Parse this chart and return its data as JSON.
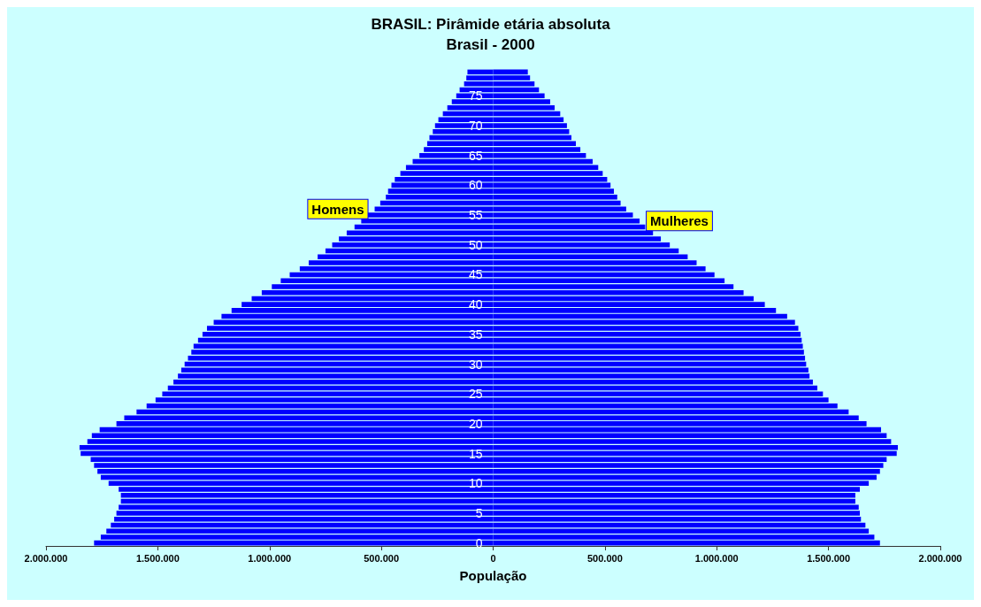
{
  "chart_data": {
    "type": "bar",
    "orientation": "horizontal",
    "title": "BRASIL: Pirâmide etária absoluta",
    "subtitle": "Brasil - 2000",
    "xlabel": "População",
    "categories": [
      null,
      null,
      null,
      null,
      "75",
      null,
      null,
      null,
      null,
      "70",
      null,
      null,
      null,
      null,
      "65",
      null,
      null,
      null,
      null,
      "60",
      null,
      null,
      null,
      null,
      "55",
      null,
      null,
      null,
      null,
      "50",
      null,
      null,
      null,
      null,
      "45",
      null,
      null,
      null,
      null,
      "40",
      null,
      null,
      null,
      null,
      "35",
      null,
      null,
      null,
      null,
      "30",
      null,
      null,
      null,
      null,
      "25",
      null,
      null,
      null,
      null,
      "20",
      null,
      null,
      null,
      null,
      "15",
      null,
      null,
      null,
      null,
      "10",
      null,
      null,
      null,
      null,
      "5",
      null,
      null,
      null,
      null,
      "0"
    ],
    "series": [
      {
        "name": "Homens",
        "color": "#0000ff",
        "values": [
          -115000,
          -120000,
          -130000,
          -150000,
          -165000,
          -185000,
          -205000,
          -225000,
          -245000,
          -260000,
          -270000,
          -285000,
          -295000,
          -310000,
          -330000,
          -360000,
          -390000,
          -415000,
          -440000,
          -455000,
          -470000,
          -480000,
          -505000,
          -530000,
          -560000,
          -590000,
          -620000,
          -655000,
          -690000,
          -720000,
          -750000,
          -785000,
          -825000,
          -865000,
          -910000,
          -950000,
          -990000,
          -1035000,
          -1080000,
          -1125000,
          -1170000,
          -1215000,
          -1250000,
          -1280000,
          -1300000,
          -1320000,
          -1340000,
          -1350000,
          -1365000,
          -1380000,
          -1395000,
          -1410000,
          -1430000,
          -1455000,
          -1480000,
          -1510000,
          -1550000,
          -1595000,
          -1650000,
          -1685000,
          -1760000,
          -1795000,
          -1815000,
          -1850000,
          -1845000,
          -1800000,
          -1785000,
          -1770000,
          -1755000,
          -1720000,
          -1675000,
          -1665000,
          -1665000,
          -1675000,
          -1685000,
          -1695000,
          -1710000,
          -1730000,
          -1755000,
          -1785000
        ]
      },
      {
        "name": "Mulheres",
        "color": "#0000ff",
        "values": [
          155000,
          165000,
          185000,
          205000,
          230000,
          255000,
          275000,
          300000,
          315000,
          330000,
          340000,
          350000,
          370000,
          390000,
          415000,
          445000,
          470000,
          490000,
          510000,
          525000,
          540000,
          555000,
          570000,
          595000,
          625000,
          655000,
          680000,
          715000,
          750000,
          790000,
          830000,
          870000,
          910000,
          950000,
          990000,
          1035000,
          1075000,
          1120000,
          1165000,
          1215000,
          1265000,
          1315000,
          1350000,
          1365000,
          1375000,
          1380000,
          1385000,
          1390000,
          1395000,
          1400000,
          1410000,
          1415000,
          1430000,
          1450000,
          1475000,
          1500000,
          1540000,
          1590000,
          1635000,
          1670000,
          1735000,
          1760000,
          1780000,
          1810000,
          1805000,
          1760000,
          1745000,
          1730000,
          1715000,
          1680000,
          1640000,
          1620000,
          1620000,
          1635000,
          1640000,
          1645000,
          1665000,
          1680000,
          1705000,
          1730000
        ]
      }
    ],
    "xlim": [
      -2000000,
      2000000
    ],
    "xticks": [
      {
        "value": -2000000,
        "label": "2.000.000"
      },
      {
        "value": -1500000,
        "label": "1.500.000"
      },
      {
        "value": -1000000,
        "label": "1.000.000"
      },
      {
        "value": -500000,
        "label": "500.000"
      },
      0,
      {
        "value": 500000,
        "label": "500.000"
      },
      {
        "value": 1000000,
        "label": "1.000.000"
      },
      {
        "value": 1500000,
        "label": "1.500.000"
      },
      {
        "value": 2000000,
        "label": "2.000.000"
      }
    ],
    "stacked": true,
    "grid": false,
    "legend": false
  }
}
